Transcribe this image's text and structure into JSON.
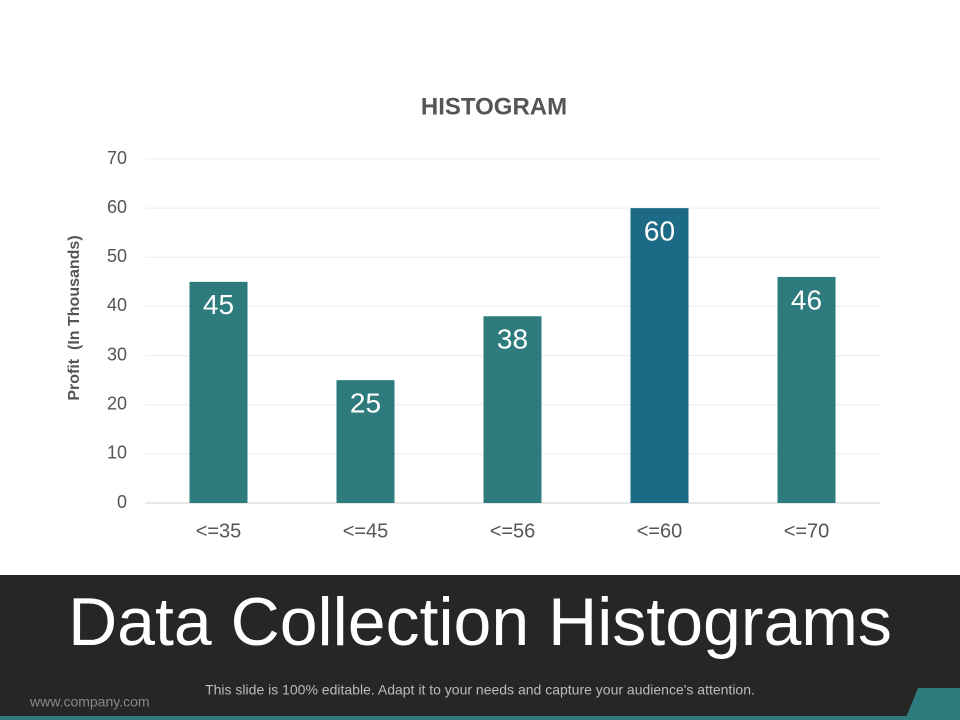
{
  "chart_data": {
    "type": "bar",
    "title": "HISTOGRAM",
    "y_label": "Profit  (In Thousands)",
    "categories": [
      "<=35",
      "<=45",
      "<=56",
      "<=60",
      "<=70"
    ],
    "values": [
      45,
      25,
      38,
      60,
      46
    ],
    "colors": [
      "#2e7b7d",
      "#2e7b7d",
      "#2e7b7d",
      "#1d6a86",
      "#2e7b7d"
    ],
    "ylim": [
      0,
      70
    ],
    "yticks": [
      0,
      10,
      20,
      30,
      40,
      50,
      60,
      70
    ],
    "grid": true
  },
  "slide": {
    "title": "Data Collection Histograms",
    "website": "www.company.com",
    "caption": "This slide is 100% editable. Adapt it to your needs and capture your audience's attention."
  }
}
